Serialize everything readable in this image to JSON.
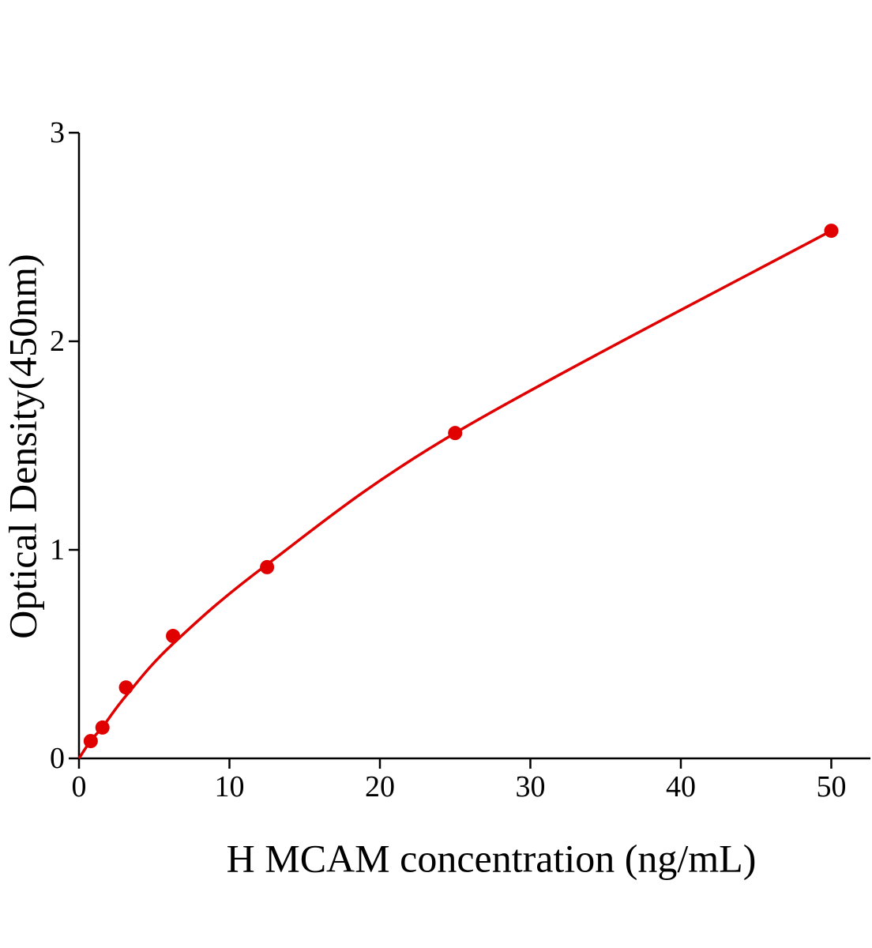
{
  "chart_data": {
    "type": "scatter",
    "x_label": "H MCAM concentration (ng/mL)",
    "y_label": "Optical Density(450nm)",
    "xlim": [
      0,
      52.6
    ],
    "xticks": [
      0,
      10,
      20,
      30,
      40,
      50
    ],
    "ylim": [
      0,
      3
    ],
    "yticks": [
      0,
      1,
      2,
      3
    ],
    "series": [
      {
        "color": "#e00000",
        "mode": "line",
        "x": [
          0,
          0.78,
          1.56,
          3.125,
          6.25,
          12.5,
          25,
          50
        ],
        "values": [
          0,
          0.085,
          0.15,
          0.3,
          0.55,
          0.93,
          1.56,
          2.53
        ]
      },
      {
        "color": "#e00000",
        "mode": "markers",
        "x": [
          0.78,
          1.56,
          3.125,
          6.25,
          12.5,
          25,
          50
        ],
        "values": [
          0.083,
          0.148,
          0.34,
          0.587,
          0.917,
          1.56,
          2.53
        ]
      }
    ]
  }
}
